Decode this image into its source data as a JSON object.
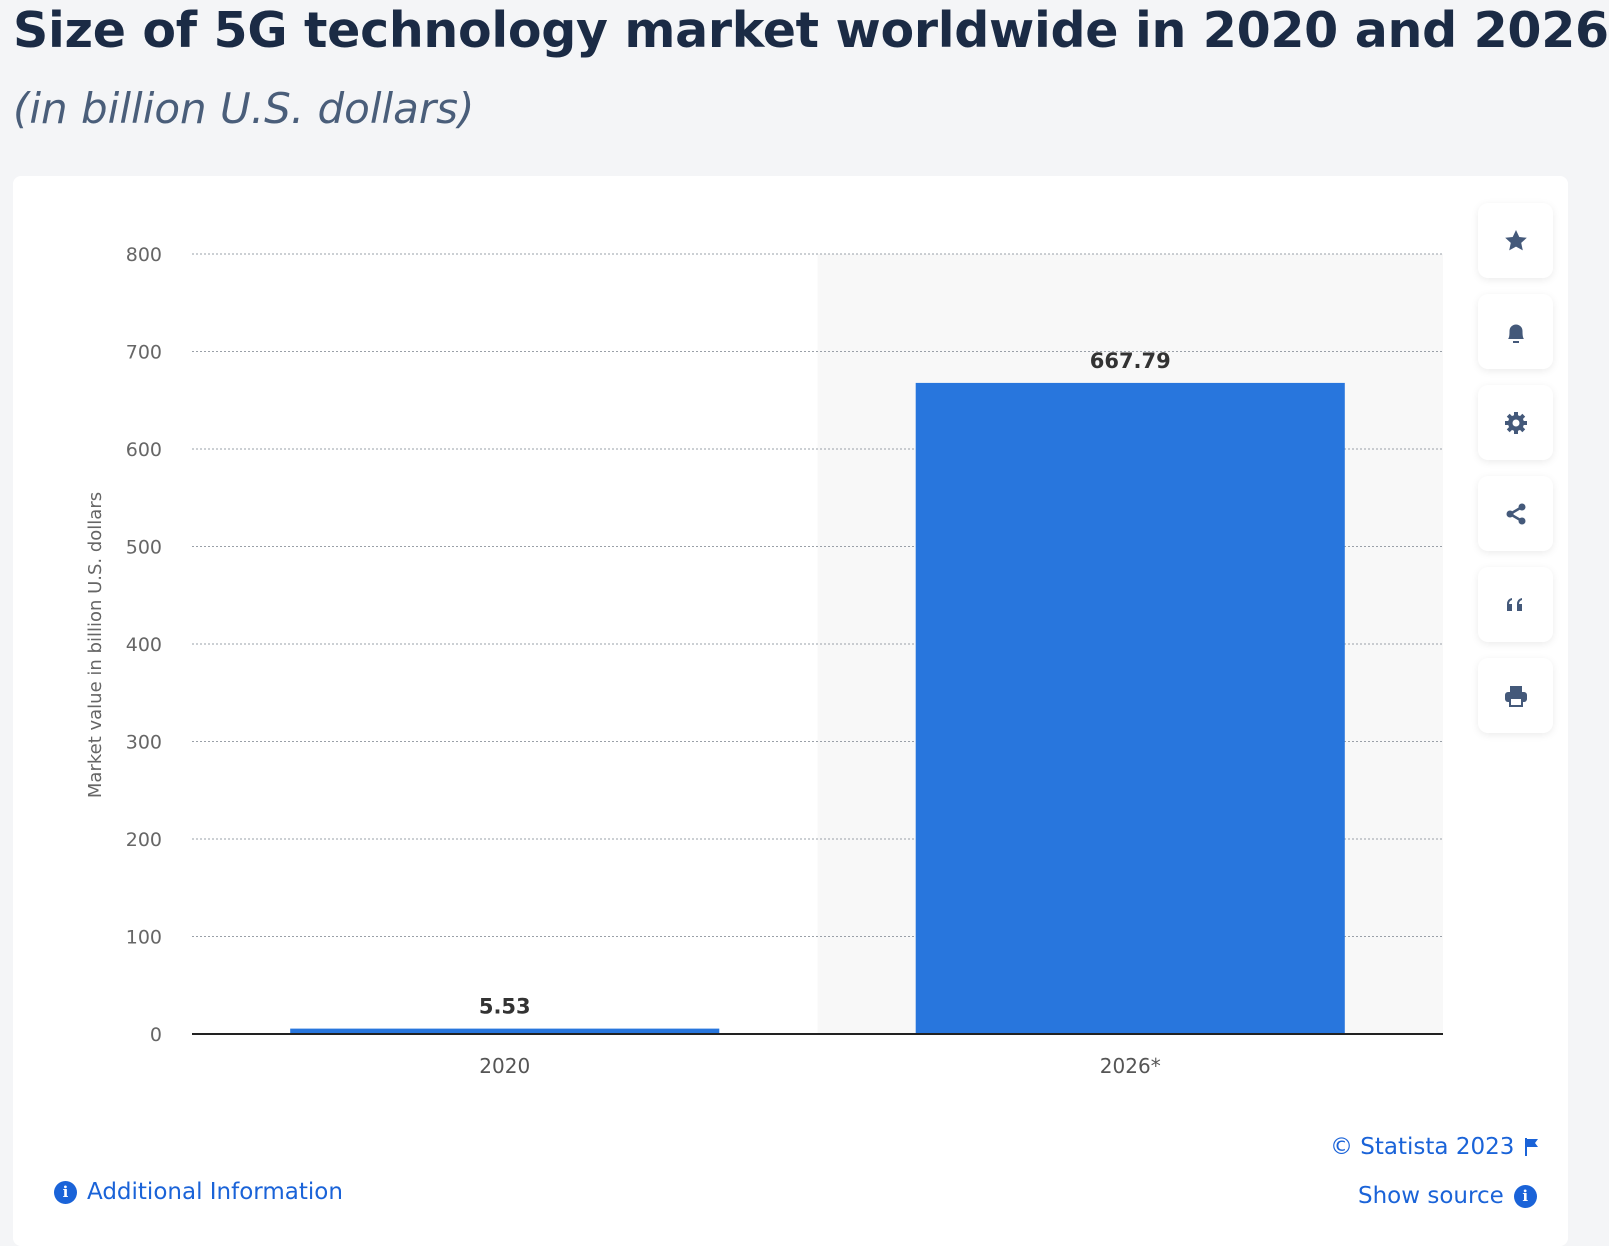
{
  "chart_data": {
    "type": "bar",
    "title": "Size of 5G technology market worldwide in 2020 and 2026",
    "subtitle": "(in billion U.S. dollars)",
    "categories": [
      "2020",
      "2026*"
    ],
    "values": [
      5.53,
      667.79
    ],
    "value_labels": [
      "5.53",
      "667.79"
    ],
    "ylabel": "Market value in billion U.S. dollars",
    "xlabel": "",
    "ylim": [
      0,
      800
    ],
    "yticks": [
      "0",
      "100",
      "200",
      "300",
      "400",
      "500",
      "600",
      "700",
      "800"
    ],
    "grid": true,
    "bar_color": "#2876dd",
    "highlighted_category": "2026*"
  },
  "toolbar": {
    "icons": [
      "star-icon",
      "bell-icon",
      "gear-icon",
      "share-icon",
      "quote-icon",
      "print-icon"
    ]
  },
  "footer": {
    "copyright": "© Statista 2023",
    "show_source": "Show source",
    "additional_info": "Additional Information"
  }
}
